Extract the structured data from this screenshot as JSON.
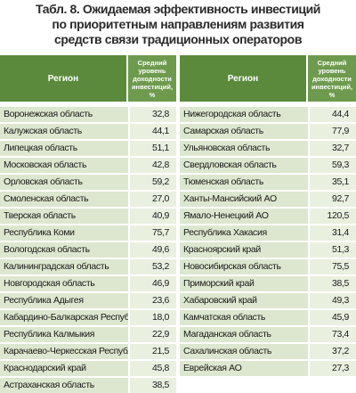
{
  "title": [
    "Табл. 8. Ожидаемая эффективность инвестиций",
    "по приоритетным направлениям развития",
    "средств связи традиционных операторов"
  ],
  "tables": [
    {
      "header": [
        "Регион",
        "Средний уровень доходности инвестиций, %"
      ],
      "rows": [
        [
          "Воронежская область",
          "32,8"
        ],
        [
          "Калужская область",
          "44,1"
        ],
        [
          "Липецкая область",
          "51,1"
        ],
        [
          "Московская область",
          "42,8"
        ],
        [
          "Орловская область",
          "59,2"
        ],
        [
          "Смоленская область",
          "27,0"
        ],
        [
          "Тверская область",
          "40,9"
        ],
        [
          "Республика Коми",
          "75,7"
        ],
        [
          "Вологодская область",
          "49,6"
        ],
        [
          "Калининградская область",
          "53,2"
        ],
        [
          "Новгородская область",
          "46,9"
        ],
        [
          "Республика Адыгея",
          "23,6"
        ],
        [
          "Кабардино-Балкарская Республика",
          "18,0"
        ],
        [
          "Республика Калмыкия",
          "22,9"
        ],
        [
          "Карачаево-Черкесская Республика",
          "21,5"
        ],
        [
          "Краснодарский край",
          "45,8"
        ],
        [
          "Астраханская область",
          "38,5"
        ]
      ]
    },
    {
      "header": [
        "Регион",
        "Средний уровень доходности инвестиций, %"
      ],
      "rows": [
        [
          "Нижегородская область",
          "44,4"
        ],
        [
          "Самарская область",
          "77,9"
        ],
        [
          "Ульяновская область",
          "32,7"
        ],
        [
          "Свердловская область",
          "59,3"
        ],
        [
          "Тюменская область",
          "35,1"
        ],
        [
          "Ханты-Мансийский АО",
          "92,7"
        ],
        [
          "Ямало-Ненецкий АО",
          "120,5"
        ],
        [
          "Республика Хакасия",
          "31,4"
        ],
        [
          "Красноярский край",
          "51,3"
        ],
        [
          "Новосибирская область",
          "75,5"
        ],
        [
          "Приморский край",
          "38,5"
        ],
        [
          "Хабаровский край",
          "49,3"
        ],
        [
          "Камчатская область",
          "45,9"
        ],
        [
          "Магаданская область",
          "73,4"
        ],
        [
          "Сахалинская область",
          "37,2"
        ],
        [
          "Еврейская АО",
          "27,3"
        ]
      ]
    }
  ]
}
